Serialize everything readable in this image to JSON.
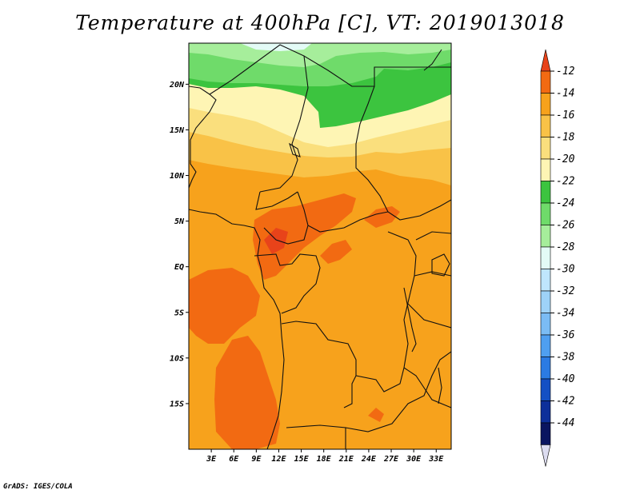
{
  "title": "Temperature at 400hPa [C], VT: 2019013018",
  "credit": "GrADS: IGES/COLA",
  "map": {
    "lat_labels": [
      "20N",
      "15N",
      "10N",
      "5N",
      "EQ",
      "5S",
      "10S",
      "15S"
    ],
    "lon_labels": [
      "3E",
      "6E",
      "9E",
      "12E",
      "15E",
      "18E",
      "21E",
      "24E",
      "27E",
      "30E",
      "33E"
    ],
    "lon_range": [
      0,
      35
    ],
    "lat_range": [
      -20,
      24.5
    ]
  },
  "colorbar": {
    "labels": [
      "-12",
      "-14",
      "-16",
      "-18",
      "-20",
      "-22",
      "-24",
      "-26",
      "-28",
      "-30",
      "-32",
      "-34",
      "-36",
      "-38",
      "-40",
      "-42",
      "-44"
    ],
    "colors": [
      "#e8431a",
      "#f26a12",
      "#f7a21c",
      "#f9c247",
      "#fadf7d",
      "#fef5b4",
      "#3cc43f",
      "#6fdb6a",
      "#a6ee9b",
      "#e3fbf6",
      "#bfe6fd",
      "#9ed2f8",
      "#7bbcf4",
      "#4f9ff0",
      "#2b7be3",
      "#1450c4",
      "#0d2f9a",
      "#0a1560",
      "#dcdcf0"
    ]
  },
  "colors": {
    "land_base": "#f7a21c",
    "warm": "#f26a12",
    "hot": "#e8431a",
    "border": "#111111"
  }
}
